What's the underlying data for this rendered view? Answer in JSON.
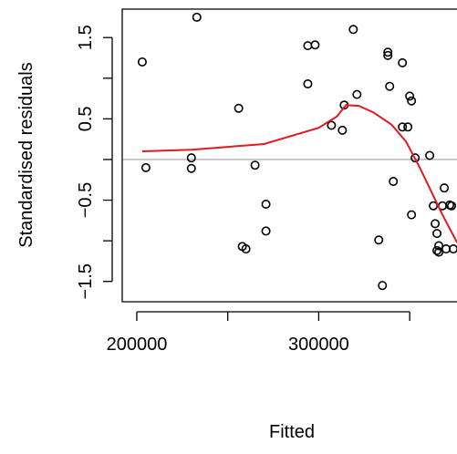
{
  "chart_data": {
    "type": "scatter",
    "title": "",
    "xlabel": "Fitted",
    "ylabel": "Standardised residuals",
    "xlim": [
      192000,
      376000
    ],
    "ylim": [
      -1.75,
      1.85
    ],
    "xticks": [
      200000,
      300000
    ],
    "xtick_labels": [
      "200000",
      "300000"
    ],
    "yticks": [
      -1.5,
      -0.5,
      0.5,
      1.5
    ],
    "ytick_labels": [
      "−1.5",
      "−0.5",
      "0.5",
      "1.5"
    ],
    "reference_line": {
      "y": 0,
      "color": "#bebebe"
    },
    "points": {
      "color": "#000000",
      "x": [
        203000,
        205000,
        230000,
        230000,
        233000,
        256000,
        258000,
        260000,
        265000,
        271000,
        271000,
        294000,
        294000,
        298000,
        307000,
        313000,
        314000,
        319000,
        321000,
        333000,
        335000,
        338000,
        338000,
        339000,
        341000,
        346000,
        346000,
        349000,
        350000,
        351000,
        353000,
        351000,
        361000,
        363000,
        368000,
        369000,
        372000,
        373000,
        374000,
        364000,
        365000,
        366000,
        365000,
        366000,
        370000
      ],
      "y": [
        1.2,
        -0.1,
        0.02,
        -0.11,
        1.75,
        0.63,
        -1.07,
        -1.1,
        -0.07,
        -0.55,
        -0.88,
        1.4,
        0.93,
        1.41,
        0.42,
        0.36,
        0.67,
        1.6,
        0.8,
        -0.99,
        -1.55,
        1.32,
        1.28,
        0.9,
        -0.27,
        1.19,
        0.4,
        0.4,
        0.78,
        0.72,
        0.02,
        -0.68,
        0.05,
        -0.57,
        -0.57,
        -0.35,
        -0.56,
        -0.57,
        -1.1,
        -0.79,
        -0.91,
        -1.06,
        -1.12,
        -1.14,
        -1.1
      ]
    },
    "smooth": {
      "color": "#e41a1c",
      "x": [
        203000,
        230000,
        270000,
        300000,
        310000,
        315000,
        322000,
        330000,
        340000,
        348000,
        356000,
        368000,
        376000
      ],
      "y": [
        0.1,
        0.12,
        0.19,
        0.39,
        0.53,
        0.67,
        0.66,
        0.58,
        0.43,
        0.22,
        -0.12,
        -0.68,
        -1.02
      ]
    }
  }
}
